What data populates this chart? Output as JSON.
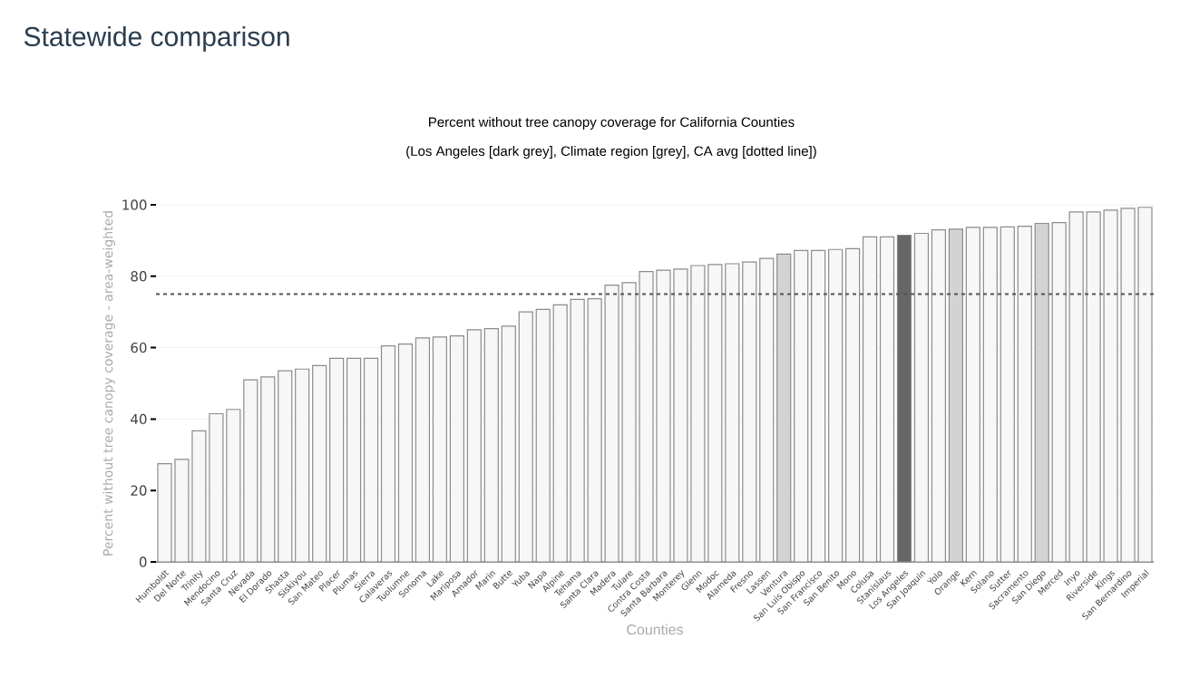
{
  "chart_data": {
    "type": "bar",
    "title": "Statewide comparison",
    "subtitle": "Percent without tree canopy coverage for California Counties",
    "annotations": [
      "(Los Angeles [dark grey], Climate region [grey], CA avg [dotted line])"
    ],
    "xlabel": "Counties",
    "ylabel": "Percent without tree canopy coverage - area-weighted",
    "categories": [
      "Humboldt",
      "Del Norte",
      "Trinity",
      "Mendocino",
      "Santa Cruz",
      "Nevada",
      "El Dorado",
      "Shasta",
      "Siskiyou",
      "San Mateo",
      "Placer",
      "Plumas",
      "Sierra",
      "Calaveras",
      "Tuolumne",
      "Sonoma",
      "Lake",
      "Mariposa",
      "Amador",
      "Marin",
      "Butte",
      "Yuba",
      "Napa",
      "Alpine",
      "Tehama",
      "Santa Clara",
      "Madera",
      "Tulare",
      "Contra Costa",
      "Santa Barbara",
      "Monterey",
      "Glenn",
      "Modoc",
      "Alameda",
      "Fresno",
      "Lassen",
      "Ventura",
      "San Luis Obispo",
      "San Francisco",
      "San Benito",
      "Mono",
      "Colusa",
      "Stanislaus",
      "Los Angeles",
      "San Joaquin",
      "Yolo",
      "Orange",
      "Kern",
      "Solano",
      "Sutter",
      "Sacramento",
      "San Diego",
      "Merced",
      "Inyo",
      "Riverside",
      "Kings",
      "San Bernardino",
      "Imperial"
    ],
    "values": [
      27.5,
      28.7,
      36.7,
      41.5,
      42.7,
      51,
      51.8,
      53.5,
      54,
      55,
      57,
      57,
      57,
      60.5,
      61,
      62.7,
      63,
      63.3,
      65,
      65.3,
      66,
      70,
      70.7,
      72,
      73.5,
      73.7,
      77.5,
      78.2,
      81.3,
      81.7,
      82,
      83,
      83.3,
      83.5,
      84,
      85,
      86.2,
      87.2,
      87.2,
      87.5,
      87.7,
      91,
      91,
      91.5,
      92,
      93,
      93.2,
      93.7,
      93.7,
      93.8,
      94,
      94.8,
      95,
      98,
      98,
      98.5,
      99,
      99.3
    ],
    "colors": [
      "#f7f7f7",
      "#f7f7f7",
      "#f7f7f7",
      "#f7f7f7",
      "#f7f7f7",
      "#f7f7f7",
      "#f7f7f7",
      "#f7f7f7",
      "#f7f7f7",
      "#f7f7f7",
      "#f7f7f7",
      "#f7f7f7",
      "#f7f7f7",
      "#f7f7f7",
      "#f7f7f7",
      "#f7f7f7",
      "#f7f7f7",
      "#f7f7f7",
      "#f7f7f7",
      "#f7f7f7",
      "#f7f7f7",
      "#f7f7f7",
      "#f7f7f7",
      "#f7f7f7",
      "#f7f7f7",
      "#f7f7f7",
      "#f7f7f7",
      "#f7f7f7",
      "#f7f7f7",
      "#f7f7f7",
      "#f7f7f7",
      "#f7f7f7",
      "#f7f7f7",
      "#f7f7f7",
      "#f7f7f7",
      "#f7f7f7",
      "#d3d3d3",
      "#f7f7f7",
      "#f7f7f7",
      "#f7f7f7",
      "#f7f7f7",
      "#f7f7f7",
      "#f7f7f7",
      "#666666",
      "#f7f7f7",
      "#f7f7f7",
      "#d3d3d3",
      "#f7f7f7",
      "#f7f7f7",
      "#f7f7f7",
      "#f7f7f7",
      "#d3d3d3",
      "#f7f7f7",
      "#f7f7f7",
      "#f7f7f7",
      "#f7f7f7",
      "#f7f7f7",
      "#f7f7f7"
    ],
    "ylim": [
      0,
      100
    ],
    "yticks": [
      0,
      20,
      40,
      60,
      80,
      100
    ],
    "grid": "y",
    "ref_lines": [
      {
        "axis": "y",
        "value": 75,
        "color": "#555555",
        "line_style": "dotted"
      }
    ]
  }
}
